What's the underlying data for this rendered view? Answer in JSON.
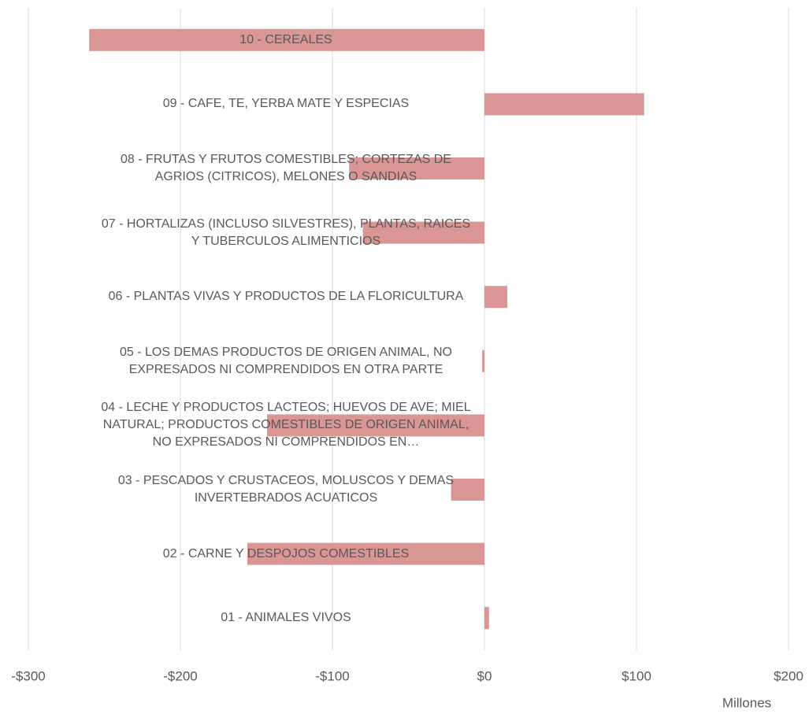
{
  "chart_data": {
    "type": "bar",
    "orientation": "horizontal",
    "categories": [
      "01 - ANIMALES VIVOS",
      "02 - CARNE Y DESPOJOS COMESTIBLES",
      "03 - PESCADOS Y CRUSTACEOS, MOLUSCOS Y DEMAS INVERTEBRADOS ACUATICOS",
      "04 - LECHE Y PRODUCTOS LACTEOS; HUEVOS DE AVE; MIEL NATURAL; PRODUCTOS COMESTIBLES DE ORIGEN ANIMAL, NO EXPRESADOS NI COMPRENDIDOS EN…",
      "05 - LOS DEMAS PRODUCTOS DE ORIGEN ANIMAL, NO EXPRESADOS NI COMPRENDIDOS EN OTRA PARTE",
      "06 - PLANTAS VIVAS Y PRODUCTOS DE LA FLORICULTURA",
      "07 - HORTALIZAS (INCLUSO SILVESTRES), PLANTAS, RAICES Y TUBERCULOS ALIMENTICIOS",
      "08 - FRUTAS Y FRUTOS COMESTIBLES; CORTEZAS DE AGRIOS (CITRICOS), MELONES O SANDIAS",
      "09 - CAFE, TE, YERBA MATE Y ESPECIAS",
      "10 - CEREALES"
    ],
    "values": [
      3,
      -156,
      -22,
      -143,
      -1.5,
      15,
      -80,
      -89,
      105,
      -260
    ],
    "color": "#d99694",
    "xlim": [
      -300,
      200
    ],
    "xticks": [
      {
        "value": -300,
        "label": "-$300"
      },
      {
        "value": -200,
        "label": "-$200"
      },
      {
        "value": -100,
        "label": "-$100"
      },
      {
        "value": 0,
        "label": "$0"
      },
      {
        "value": 100,
        "label": "$100"
      },
      {
        "value": 200,
        "label": "$200"
      }
    ],
    "x_unit_label": "Millones",
    "grid": true
  }
}
